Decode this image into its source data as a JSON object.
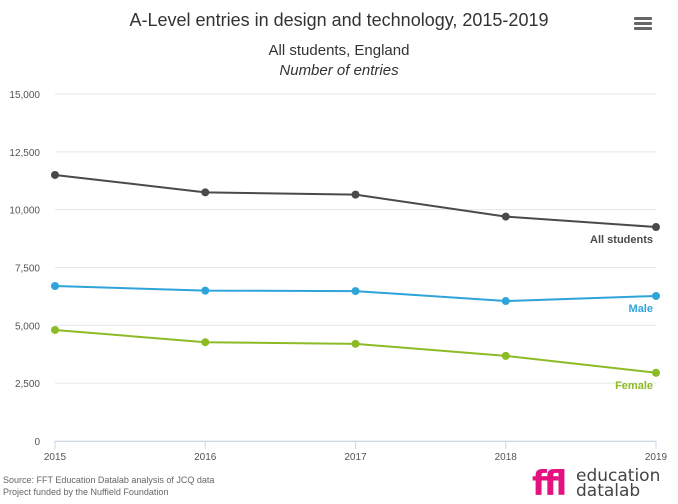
{
  "header": {
    "title": "A-Level entries in design and technology, 2015-2019",
    "subtitle_line1": "All students, England",
    "subtitle_line2": "Number of entries"
  },
  "menu": {
    "icon": "hamburger-menu-icon"
  },
  "footer": {
    "source": "Source: FFT Education Datalab analysis of JCQ data",
    "funding": "Project funded by the Nuffield Foundation"
  },
  "logo": {
    "mark": "ffl",
    "word1": "education",
    "word2": "datalab"
  },
  "chart_data": {
    "type": "line",
    "x": [
      2015,
      2016,
      2017,
      2018,
      2019
    ],
    "ylim": [
      0,
      15000
    ],
    "yticks": [
      0,
      2500,
      5000,
      7500,
      10000,
      12500,
      15000
    ],
    "ytick_labels": [
      "0",
      "2,500",
      "5,000",
      "7,500",
      "10,000",
      "12,500",
      "15,000"
    ],
    "xtick_labels": [
      "2015",
      "2016",
      "2017",
      "2018",
      "2019"
    ],
    "grid": true,
    "series": [
      {
        "name": "All students",
        "color": "#4a4a4a",
        "values": [
          11500,
          10750,
          10650,
          9700,
          9250
        ]
      },
      {
        "name": "Male",
        "color": "#2fa4d9",
        "values": [
          6700,
          6500,
          6480,
          6050,
          6270
        ]
      },
      {
        "name": "Female",
        "color": "#8cbb26",
        "values": [
          4800,
          4270,
          4200,
          3680,
          2950
        ]
      }
    ]
  }
}
